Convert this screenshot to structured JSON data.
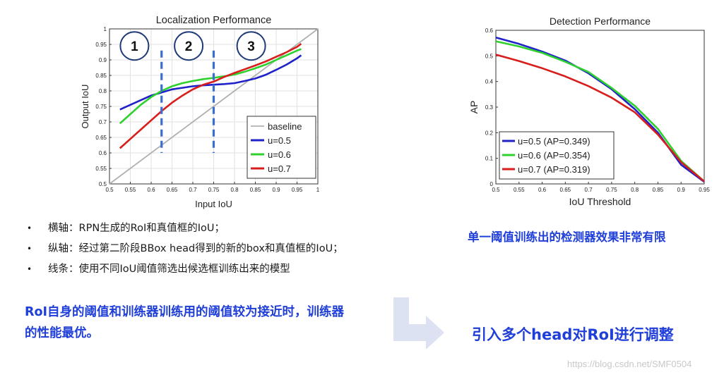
{
  "chart_data": [
    {
      "type": "line",
      "title": "Localization Performance",
      "xlabel": "Input IoU",
      "ylabel": "Output IoU",
      "xlim": [
        0.5,
        1.0
      ],
      "ylim": [
        0.5,
        1.0
      ],
      "xticks": [
        "0.5",
        "0.55",
        "0.6",
        "0.65",
        "0.7",
        "0.75",
        "0.8",
        "0.85",
        "0.9",
        "0.95",
        "1"
      ],
      "yticks": [
        "0.5",
        "0.55",
        "0.6",
        "0.65",
        "0.7",
        "0.75",
        "0.8",
        "0.85",
        "0.9",
        "0.95",
        "1"
      ],
      "grid": true,
      "legend_position": "bottom-right",
      "series": [
        {
          "name": "baseline",
          "color": "#b0b0b0",
          "x": [
            0.5,
            1.0
          ],
          "y": [
            0.5,
            1.0
          ]
        },
        {
          "name": "u=0.5",
          "color": "#1e22c8",
          "x": [
            0.525,
            0.55,
            0.575,
            0.6,
            0.625,
            0.65,
            0.675,
            0.7,
            0.725,
            0.75,
            0.775,
            0.8,
            0.825,
            0.85,
            0.875,
            0.9,
            0.925,
            0.95,
            0.96
          ],
          "y": [
            0.74,
            0.755,
            0.77,
            0.785,
            0.795,
            0.805,
            0.81,
            0.815,
            0.818,
            0.82,
            0.822,
            0.825,
            0.832,
            0.84,
            0.852,
            0.868,
            0.885,
            0.905,
            0.915
          ]
        },
        {
          "name": "u=0.6",
          "color": "#2ed12e",
          "x": [
            0.525,
            0.55,
            0.575,
            0.6,
            0.625,
            0.65,
            0.675,
            0.7,
            0.725,
            0.75,
            0.775,
            0.8,
            0.825,
            0.85,
            0.875,
            0.9,
            0.925,
            0.95,
            0.96
          ],
          "y": [
            0.695,
            0.725,
            0.755,
            0.78,
            0.8,
            0.815,
            0.825,
            0.832,
            0.838,
            0.842,
            0.847,
            0.853,
            0.862,
            0.873,
            0.885,
            0.9,
            0.915,
            0.93,
            0.935
          ]
        },
        {
          "name": "u=0.7",
          "color": "#d91c1c",
          "x": [
            0.525,
            0.55,
            0.575,
            0.6,
            0.625,
            0.65,
            0.675,
            0.7,
            0.725,
            0.75,
            0.775,
            0.8,
            0.825,
            0.85,
            0.875,
            0.9,
            0.925,
            0.95,
            0.96
          ],
          "y": [
            0.615,
            0.645,
            0.675,
            0.705,
            0.735,
            0.762,
            0.785,
            0.805,
            0.82,
            0.83,
            0.845,
            0.858,
            0.87,
            0.882,
            0.895,
            0.91,
            0.925,
            0.942,
            0.952
          ]
        }
      ],
      "annotations": {
        "regions": [
          "1",
          "2",
          "3"
        ],
        "dashed_lines_x": [
          0.625,
          0.75
        ]
      }
    },
    {
      "type": "line",
      "title": "Detection Performance",
      "xlabel": "IoU Threshold",
      "ylabel": "AP",
      "xlim": [
        0.5,
        0.95
      ],
      "ylim": [
        0,
        0.6
      ],
      "xticks": [
        "0.5",
        "0.55",
        "0.6",
        "0.65",
        "0.7",
        "0.75",
        "0.8",
        "0.85",
        "0.9",
        "0.95"
      ],
      "yticks": [
        "0",
        "0.1",
        "0.2",
        "0.3",
        "0.4",
        "0.5",
        "0.6"
      ],
      "grid": false,
      "legend_position": "bottom-left",
      "series": [
        {
          "name": "u=0.5 (AP=0.349)",
          "color": "#1e22c8",
          "x": [
            0.5,
            0.55,
            0.6,
            0.65,
            0.7,
            0.75,
            0.8,
            0.85,
            0.9,
            0.95
          ],
          "y": [
            0.572,
            0.547,
            0.517,
            0.482,
            0.432,
            0.37,
            0.292,
            0.2,
            0.075,
            0.008
          ]
        },
        {
          "name": "u=0.6 (AP=0.354)",
          "color": "#2ed12e",
          "x": [
            0.5,
            0.55,
            0.6,
            0.65,
            0.7,
            0.75,
            0.8,
            0.85,
            0.9,
            0.95
          ],
          "y": [
            0.557,
            0.537,
            0.512,
            0.477,
            0.437,
            0.375,
            0.305,
            0.215,
            0.09,
            0.01
          ]
        },
        {
          "name": "u=0.7 (AP=0.319)",
          "color": "#d91c1c",
          "x": [
            0.5,
            0.55,
            0.6,
            0.65,
            0.7,
            0.75,
            0.8,
            0.85,
            0.9,
            0.95
          ],
          "y": [
            0.505,
            0.48,
            0.452,
            0.42,
            0.382,
            0.337,
            0.28,
            0.193,
            0.085,
            0.01
          ]
        }
      ]
    }
  ],
  "bullets": [
    "横轴：RPN生成的RoI和真值框的IoU；",
    "纵轴：经过第二阶段BBox head得到的新的box和真值框的IoU；",
    "线条：使用不同IoU阈值筛选出候选框训练出来的模型"
  ],
  "bullet_symbol": "•",
  "note_left_line1": "RoI自身的阈值和训练器训练用的阈值较为接近时，训练器",
  "note_left_line2": "的性能最优。",
  "note_right_top": "单一阈值训练出的检测器效果非常有限",
  "conclusion": "引入多个head对RoI进行调整",
  "watermark": "https://blog.csdn.net/SMF0504",
  "colors": {
    "accent_blue": "#1f3fd8",
    "arrow": "#dde2f3"
  }
}
